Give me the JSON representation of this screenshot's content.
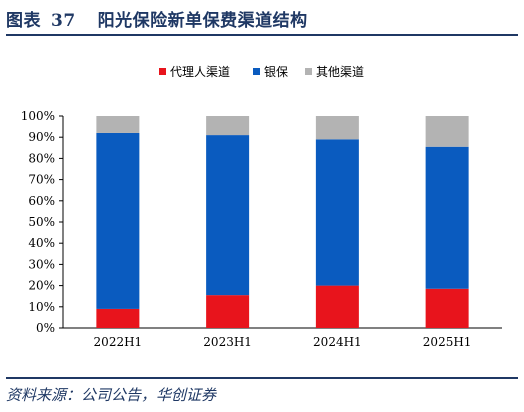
{
  "figure": {
    "label": "图表",
    "number": "37",
    "title": "阳光保险新单保费渠道结构"
  },
  "source": "资料来源：公司公告，华创证券",
  "chart_data": {
    "type": "bar",
    "stacked": true,
    "categories": [
      "2022H1",
      "2023H1",
      "2024H1",
      "2025H1"
    ],
    "series": [
      {
        "name": "代理人渠道",
        "color": "#e8141c",
        "values": [
          9,
          15.5,
          20,
          18.5
        ]
      },
      {
        "name": "银保",
        "color": "#0a5bbf",
        "values": [
          83,
          75.5,
          69,
          67
        ]
      },
      {
        "name": "其他渠道",
        "color": "#b3b3b3",
        "values": [
          8,
          9,
          11,
          14.5
        ]
      }
    ],
    "yticks": [
      "0%",
      "10%",
      "20%",
      "30%",
      "40%",
      "50%",
      "60%",
      "70%",
      "80%",
      "90%",
      "100%"
    ],
    "ylim": [
      0,
      100
    ],
    "legend_position": "top"
  }
}
